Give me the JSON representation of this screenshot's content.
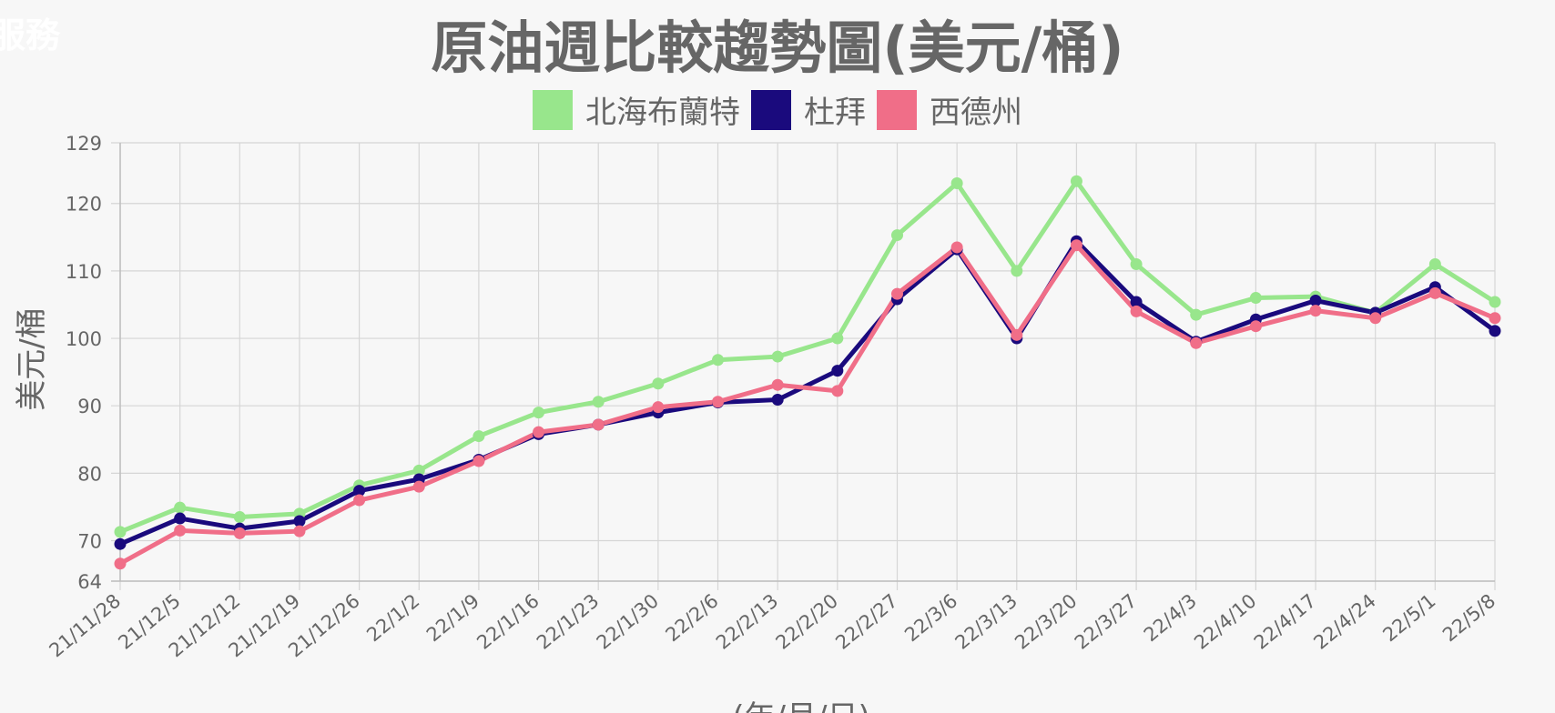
{
  "corner_text": "服務",
  "chart_data": {
    "type": "line",
    "title": "原油週比較趨勢圖(美元/桶)",
    "xlabel": "(年/月/日)",
    "ylabel": "美元/桶",
    "ylim": [
      64,
      129
    ],
    "yticks": [
      64,
      70,
      80,
      90,
      100,
      110,
      120,
      129
    ],
    "grid": true,
    "legend_position": "top",
    "categories": [
      "21/11/28",
      "21/12/5",
      "21/12/12",
      "21/12/19",
      "21/12/26",
      "22/1/2",
      "22/1/9",
      "22/1/16",
      "22/1/23",
      "22/1/30",
      "22/2/6",
      "22/2/13",
      "22/2/20",
      "22/2/27",
      "22/3/6",
      "22/3/13",
      "22/3/20",
      "22/3/27",
      "22/4/3",
      "22/4/10",
      "22/4/17",
      "22/4/24",
      "22/5/1",
      "22/5/8"
    ],
    "series": [
      {
        "name": "北海布蘭特",
        "color": "#98e68c",
        "values": [
          71.3,
          74.9,
          73.5,
          74.0,
          78.2,
          80.4,
          85.5,
          89.0,
          90.6,
          93.3,
          96.8,
          97.3,
          100.0,
          115.3,
          123.0,
          110.0,
          123.3,
          111.0,
          103.5,
          106.0,
          106.2,
          103.8,
          111.0,
          105.4
        ]
      },
      {
        "name": "杜拜",
        "color": "#1a0a7d",
        "values": [
          69.5,
          73.3,
          71.8,
          72.9,
          77.4,
          79.1,
          82.0,
          85.8,
          87.2,
          89.0,
          90.5,
          90.9,
          95.2,
          105.8,
          113.2,
          100.0,
          114.4,
          105.4,
          99.5,
          102.8,
          105.6,
          103.8,
          107.6,
          101.1
        ]
      },
      {
        "name": "西德州",
        "color": "#f06e88",
        "values": [
          66.6,
          71.5,
          71.1,
          71.4,
          76.0,
          78.0,
          81.8,
          86.1,
          87.2,
          89.8,
          90.6,
          93.1,
          92.2,
          106.6,
          113.5,
          100.5,
          113.8,
          104.0,
          99.3,
          101.8,
          104.1,
          103.0,
          106.7,
          103.0
        ]
      }
    ]
  }
}
